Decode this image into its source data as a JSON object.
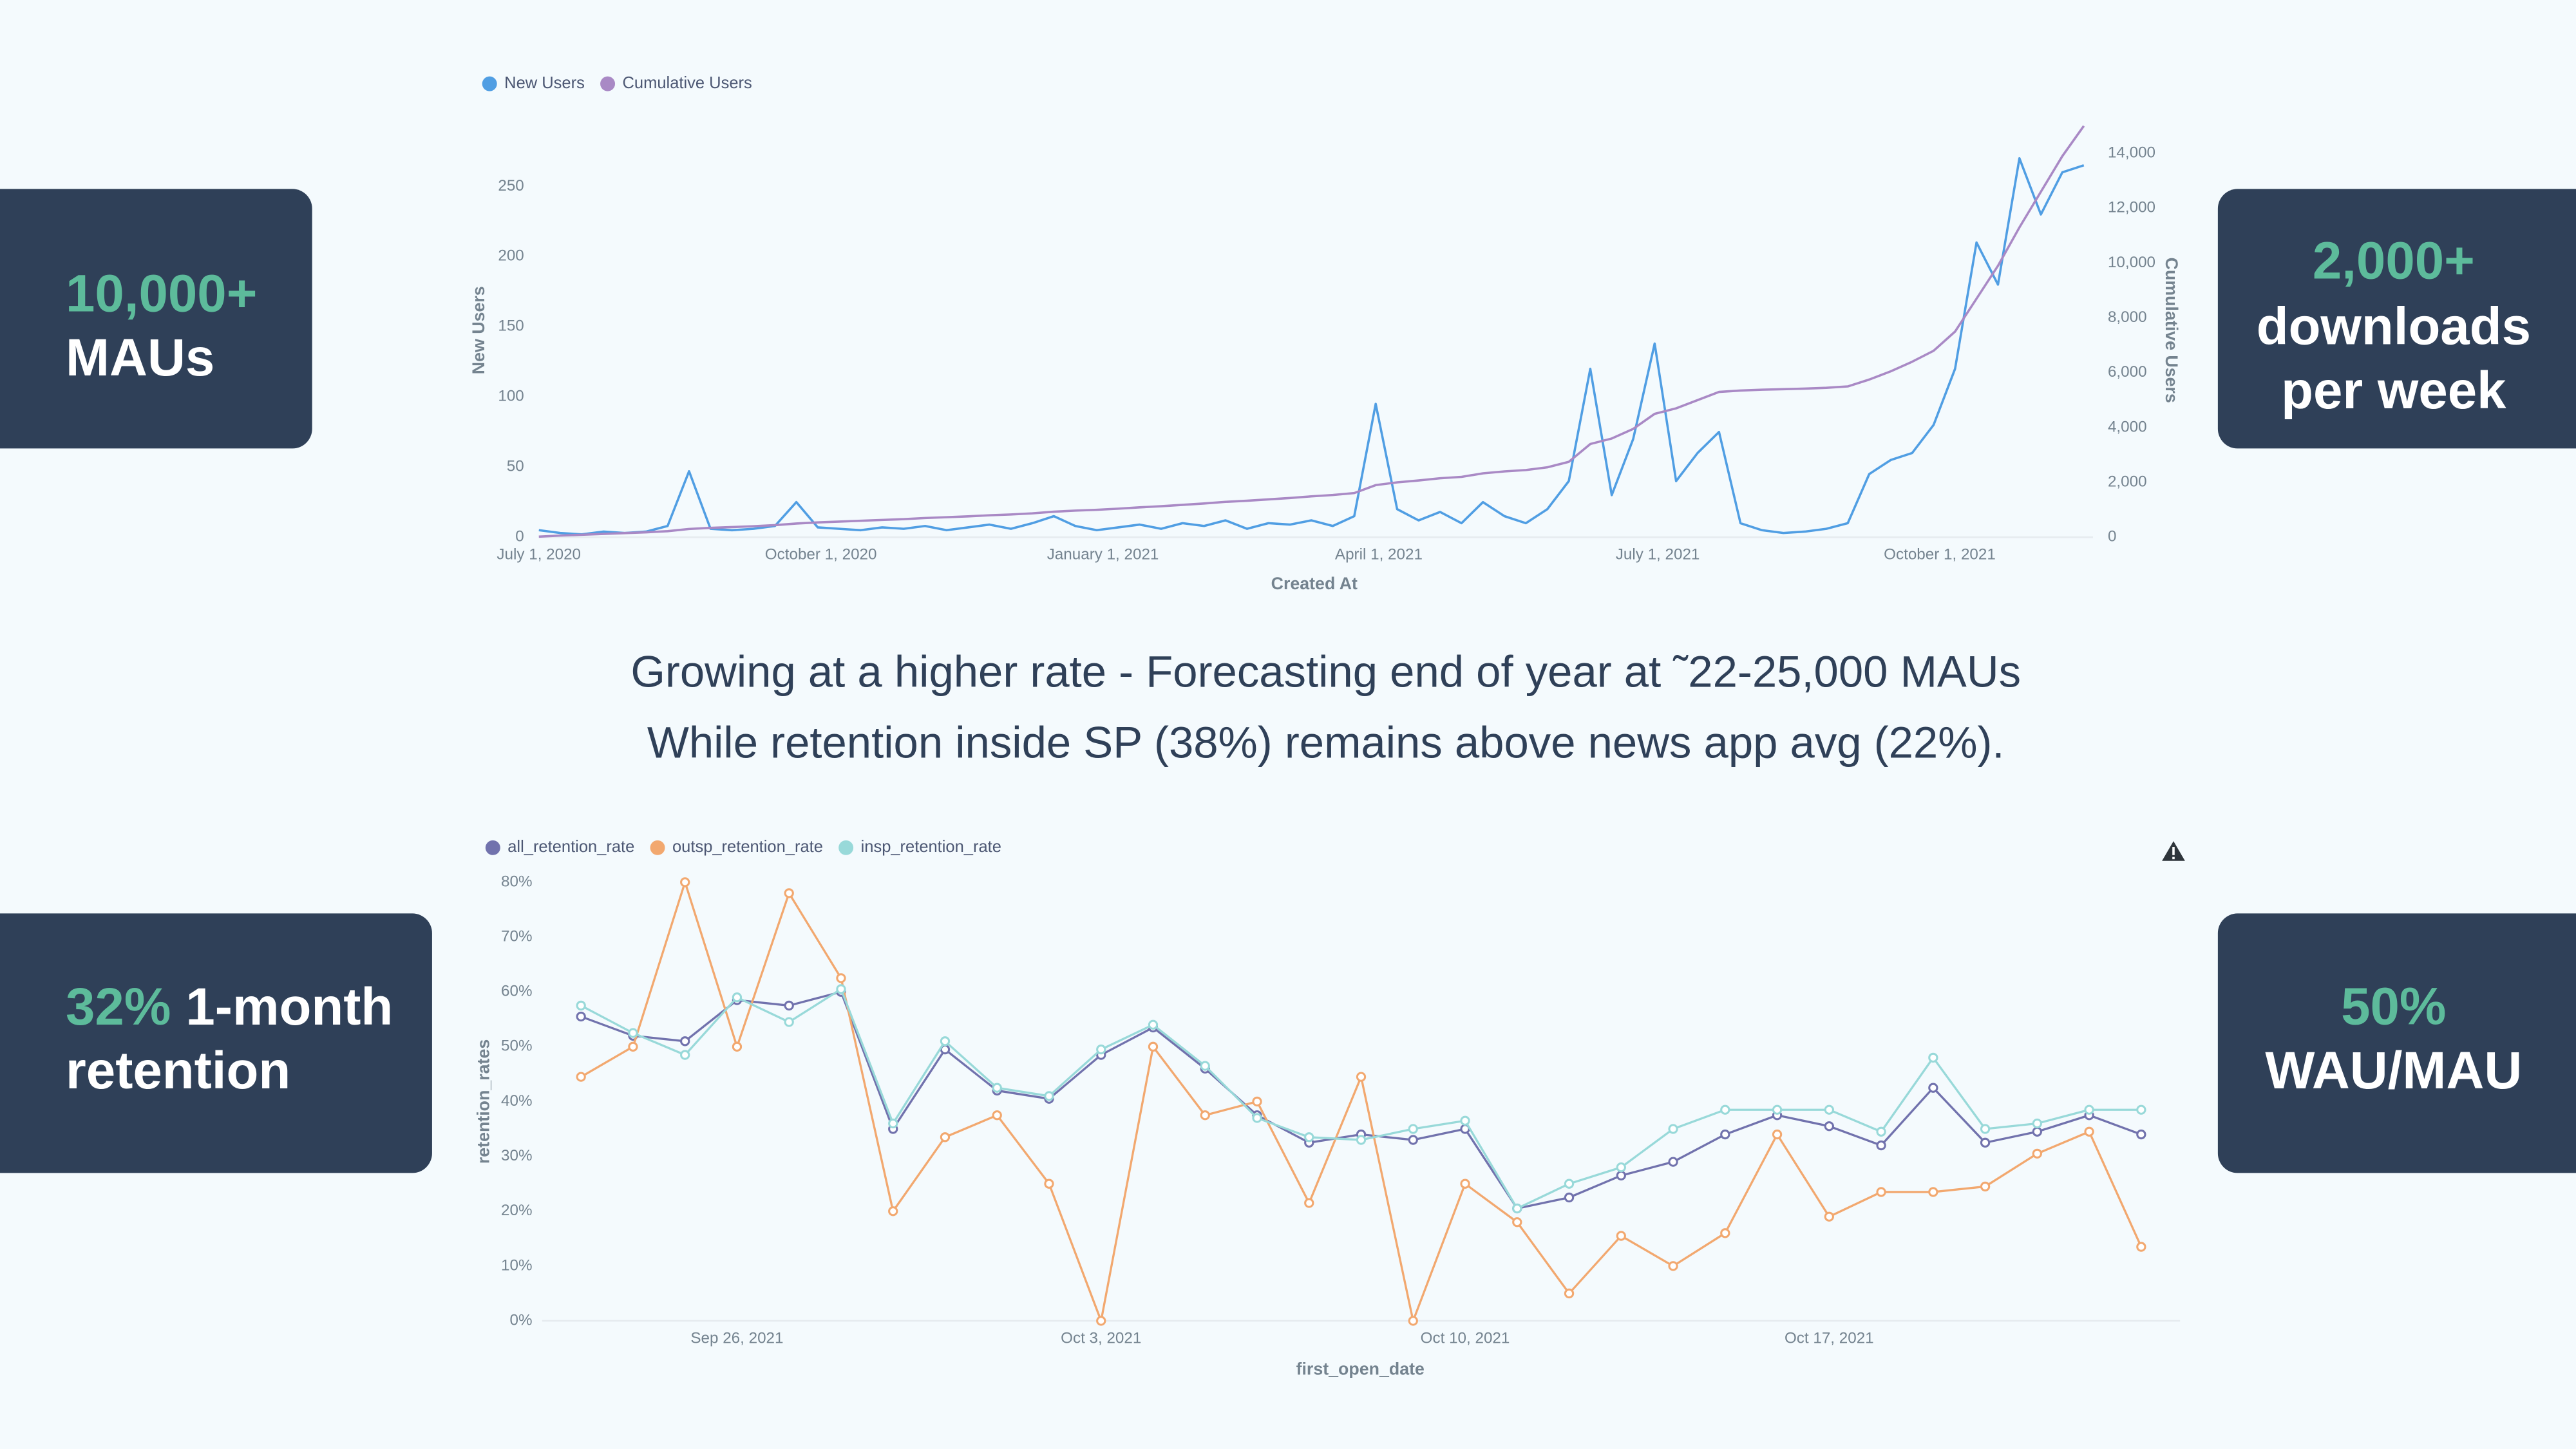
{
  "chart_data": [
    {
      "type": "line",
      "xlabel": "Created At",
      "ylabel": "New Users",
      "y2label": "Cumulative Users",
      "x": [
        "2020-07-01",
        "2020-07-08",
        "2020-07-15",
        "2020-07-22",
        "2020-07-29",
        "2020-08-05",
        "2020-08-12",
        "2020-08-19",
        "2020-08-26",
        "2020-09-02",
        "2020-09-09",
        "2020-09-16",
        "2020-09-23",
        "2020-09-30",
        "2020-10-07",
        "2020-10-14",
        "2020-10-21",
        "2020-10-28",
        "2020-11-04",
        "2020-11-11",
        "2020-11-18",
        "2020-11-25",
        "2020-12-02",
        "2020-12-09",
        "2020-12-16",
        "2020-12-23",
        "2020-12-30",
        "2021-01-06",
        "2021-01-13",
        "2021-01-20",
        "2021-01-27",
        "2021-02-03",
        "2021-02-10",
        "2021-02-17",
        "2021-02-24",
        "2021-03-03",
        "2021-03-10",
        "2021-03-17",
        "2021-03-24",
        "2021-03-31",
        "2021-04-07",
        "2021-04-14",
        "2021-04-21",
        "2021-04-28",
        "2021-05-05",
        "2021-05-12",
        "2021-05-19",
        "2021-05-26",
        "2021-06-02",
        "2021-06-09",
        "2021-06-16",
        "2021-06-23",
        "2021-06-30",
        "2021-07-07",
        "2021-07-14",
        "2021-07-21",
        "2021-07-28",
        "2021-08-04",
        "2021-08-11",
        "2021-08-18",
        "2021-08-25",
        "2021-09-01",
        "2021-09-08",
        "2021-09-15",
        "2021-09-22",
        "2021-09-29",
        "2021-10-06",
        "2021-10-13",
        "2021-10-20",
        "2021-10-27",
        "2021-11-03",
        "2021-11-10",
        "2021-11-17"
      ],
      "series": [
        {
          "name": "New Users",
          "color": "#509ee3",
          "values": [
            5,
            3,
            2,
            4,
            3,
            4,
            8,
            47,
            6,
            5,
            6,
            8,
            25,
            7,
            6,
            5,
            7,
            6,
            8,
            5,
            7,
            9,
            6,
            10,
            15,
            8,
            5,
            7,
            9,
            6,
            10,
            8,
            12,
            6,
            10,
            9,
            12,
            8,
            15,
            95,
            20,
            12,
            18,
            10,
            25,
            15,
            10,
            20,
            40,
            120,
            30,
            70,
            138,
            40,
            60,
            75,
            10,
            5,
            3,
            4,
            6,
            10,
            45,
            55,
            60,
            80,
            120,
            210,
            180,
            270,
            230,
            260,
            265
          ]
        },
        {
          "name": "Cumulative Users",
          "color": "#a989c5",
          "axis": "y2",
          "values": [
            20,
            60,
            90,
            120,
            150,
            180,
            220,
            300,
            340,
            370,
            400,
            440,
            500,
            540,
            570,
            600,
            630,
            660,
            700,
            730,
            760,
            800,
            830,
            870,
            930,
            970,
            1000,
            1040,
            1090,
            1130,
            1180,
            1230,
            1290,
            1330,
            1380,
            1430,
            1490,
            1540,
            1610,
            1900,
            2000,
            2070,
            2150,
            2200,
            2330,
            2400,
            2450,
            2550,
            2750,
            3400,
            3600,
            3950,
            4500,
            4700,
            5000,
            5300,
            5350,
            5380,
            5400,
            5420,
            5450,
            5500,
            5750,
            6050,
            6400,
            6800,
            7500,
            8700,
            9900,
            11300,
            12600,
            13900,
            15000
          ]
        }
      ],
      "xlim": [
        "2020-07-01",
        "2021-11-20"
      ],
      "xticks": [
        {
          "value": "2020-07-01",
          "label": "July 1, 2020"
        },
        {
          "value": "2020-10-01",
          "label": "October 1, 2020"
        },
        {
          "value": "2021-01-01",
          "label": "January 1, 2021"
        },
        {
          "value": "2021-04-01",
          "label": "April 1, 2021"
        },
        {
          "value": "2021-07-01",
          "label": "July 1, 2021"
        },
        {
          "value": "2021-10-01",
          "label": "October 1, 2021"
        }
      ],
      "ylim": [
        0,
        295
      ],
      "yticks": [
        0,
        50,
        100,
        150,
        200,
        250
      ],
      "y2lim": [
        0,
        15100
      ],
      "y2ticks": [
        0,
        {
          "value": 2000,
          "label": "2,000"
        },
        {
          "value": 4000,
          "label": "4,000"
        },
        {
          "value": 6000,
          "label": "6,000"
        },
        {
          "value": 8000,
          "label": "8,000"
        },
        {
          "value": 10000,
          "label": "10,000"
        },
        {
          "value": 12000,
          "label": "12,000"
        },
        {
          "value": 14000,
          "label": "14,000"
        }
      ],
      "markers": false,
      "legend": "top-left"
    },
    {
      "type": "line",
      "xlabel": "first_open_date",
      "ylabel": "retention_rates",
      "x": [
        "2021-09-23",
        "2021-09-24",
        "2021-09-25",
        "2021-09-26",
        "2021-09-27",
        "2021-09-28",
        "2021-09-29",
        "2021-09-30",
        "2021-10-01",
        "2021-10-02",
        "2021-10-03",
        "2021-10-04",
        "2021-10-05",
        "2021-10-06",
        "2021-10-07",
        "2021-10-08",
        "2021-10-09",
        "2021-10-10",
        "2021-10-11",
        "2021-10-12",
        "2021-10-13",
        "2021-10-14",
        "2021-10-15",
        "2021-10-16",
        "2021-10-17",
        "2021-10-18",
        "2021-10-19",
        "2021-10-20",
        "2021-10-21",
        "2021-10-22",
        "2021-10-23"
      ],
      "series": [
        {
          "name": "all_retention_rate",
          "color": "#7172ad",
          "values": [
            55.5,
            52,
            51,
            58.5,
            57.5,
            60,
            35,
            49.5,
            42,
            40.5,
            48.5,
            53.5,
            46,
            37.5,
            32.5,
            34,
            33,
            35,
            20.5,
            22.5,
            26.5,
            29,
            34,
            37.5,
            35.5,
            32,
            42.5,
            32.5,
            34.5,
            37.5,
            34
          ]
        },
        {
          "name": "outsp_retention_rate",
          "color": "#f2a86f",
          "values": [
            44.5,
            50,
            80,
            50,
            78,
            62.5,
            20,
            33.5,
            37.5,
            25,
            0,
            50,
            37.5,
            40,
            21.5,
            44.5,
            0,
            25,
            18,
            5,
            15.5,
            10,
            16,
            34,
            19,
            23.5,
            23.5,
            24.5,
            30.5,
            34.5,
            13.5
          ]
        },
        {
          "name": "insp_retention_rate",
          "color": "#98d9d9",
          "values": [
            57.5,
            52.5,
            48.5,
            59,
            54.5,
            60.5,
            36,
            51,
            42.5,
            41,
            49.5,
            54,
            46.5,
            37,
            33.5,
            33,
            35,
            36.5,
            20.5,
            25,
            28,
            35,
            38.5,
            38.5,
            38.5,
            34.5,
            48,
            35,
            36,
            38.5,
            38.5
          ]
        }
      ],
      "xlim": [
        "2021-09-22",
        "2021-10-24"
      ],
      "xticks": [
        {
          "value": "2021-09-26",
          "label": "Sep 26, 2021"
        },
        {
          "value": "2021-10-03",
          "label": "Oct 3, 2021"
        },
        {
          "value": "2021-10-10",
          "label": "Oct 10, 2021"
        },
        {
          "value": "2021-10-17",
          "label": "Oct 17, 2021"
        }
      ],
      "ylim": [
        0,
        80
      ],
      "yticks": [
        {
          "value": 0,
          "label": "0%"
        },
        {
          "value": 10,
          "label": "10%"
        },
        {
          "value": 20,
          "label": "20%"
        },
        {
          "value": 30,
          "label": "30%"
        },
        {
          "value": 40,
          "label": "40%"
        },
        {
          "value": 50,
          "label": "50%"
        },
        {
          "value": 60,
          "label": "60%"
        },
        {
          "value": 70,
          "label": "70%"
        },
        {
          "value": 80,
          "label": "80%"
        }
      ],
      "markers": true,
      "legend": "top-left"
    }
  ],
  "caption": [
    "Growing at a higher rate - Forecasting end of year at ˜22-25,000 MAUs",
    "While retention inside SP (38%) remains above news app avg (22%)."
  ],
  "stats": [
    {
      "highlight": "10,000+",
      "lines": [
        "MAUs"
      ]
    },
    {
      "highlight": "2,000+",
      "lines": [
        "downloads",
        "per week"
      ]
    },
    {
      "highlight": "32%",
      "lines": [
        "1-month",
        "retention"
      ]
    },
    {
      "highlight": "50%",
      "lines": [
        "WAU/MAU"
      ]
    }
  ]
}
